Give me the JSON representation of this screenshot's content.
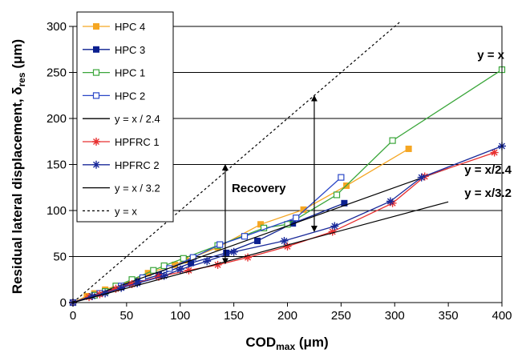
{
  "chart_data": {
    "type": "line",
    "xlabel": {
      "main": "COD",
      "sub": "max",
      "tail": " (μm)"
    },
    "ylabel": {
      "main": "Residual lateral displacement, δ",
      "sub": "res",
      "tail": " (μm)"
    },
    "xlim": [
      0,
      400
    ],
    "ylim": [
      0,
      300
    ],
    "xticks": [
      0,
      50,
      100,
      150,
      200,
      250,
      300,
      350,
      400
    ],
    "yticks": [
      0,
      50,
      100,
      150,
      200,
      250,
      300
    ],
    "grid": "horizontal",
    "legend_position": "top-left",
    "series": [
      {
        "name": "HPC 4",
        "color": "#f5a623",
        "marker": "filled-square",
        "x": [
          0,
          13,
          20,
          30,
          40,
          55,
          70,
          95,
          105,
          135,
          175,
          215,
          255,
          313
        ],
        "y": [
          0,
          7,
          10,
          14,
          18,
          24,
          32,
          41,
          46,
          60,
          85,
          101,
          127,
          167
        ]
      },
      {
        "name": "HPC 3",
        "color": "#0a1f8f",
        "marker": "filled-square",
        "x": [
          0,
          20,
          30,
          45,
          60,
          80,
          110,
          143,
          172,
          205,
          253
        ],
        "y": [
          0,
          8,
          12,
          17,
          23,
          30,
          43,
          54,
          67,
          86,
          108
        ]
      },
      {
        "name": "HPC 1",
        "color": "#3aa63a",
        "marker": "open-square",
        "x": [
          0,
          20,
          30,
          40,
          55,
          75,
          85,
          103,
          135,
          178,
          200,
          246,
          298,
          400
        ],
        "y": [
          0,
          8,
          12,
          18,
          25,
          35,
          40,
          48,
          62,
          81,
          85,
          117,
          176,
          253
        ]
      },
      {
        "name": "HPC 2",
        "color": "#2a47c7",
        "marker": "open-square",
        "x": [
          0,
          25,
          45,
          65,
          90,
          112,
          137,
          160,
          208,
          250
        ],
        "y": [
          0,
          10,
          18,
          27,
          37,
          49,
          63,
          72,
          92,
          136
        ]
      },
      {
        "name": "y = x / 2.4",
        "color": "#000000",
        "marker": "none",
        "x": [
          0,
          350
        ],
        "y": [
          0,
          145.8
        ]
      },
      {
        "name": "HPFRC 1",
        "color": "#e83030",
        "marker": "asterisk",
        "x": [
          0,
          15,
          25,
          40,
          55,
          80,
          108,
          135,
          163,
          200,
          242,
          298,
          328,
          393
        ],
        "y": [
          0,
          6,
          9,
          15,
          20,
          28,
          35,
          41,
          49,
          61,
          77,
          108,
          137,
          163
        ]
      },
      {
        "name": "HPFRC 2",
        "color": "#1a2a9a",
        "marker": "asterisk",
        "x": [
          0,
          18,
          30,
          45,
          60,
          85,
          100,
          125,
          150,
          197,
          244,
          296,
          325,
          400
        ],
        "y": [
          0,
          7,
          10,
          16,
          21,
          29,
          36,
          45,
          55,
          67,
          83,
          110,
          136,
          170
        ]
      },
      {
        "name": "y = x / 3.2",
        "color": "#000000",
        "marker": "none",
        "x": [
          0,
          350
        ],
        "y": [
          0,
          109.4
        ]
      },
      {
        "name": "y = x",
        "color": "#000000",
        "marker": "none",
        "dashed": true,
        "x": [
          0,
          305
        ],
        "y": [
          0,
          305
        ]
      }
    ],
    "annotations": [
      {
        "text": "y = x",
        "x": 377,
        "y": 265
      },
      {
        "text": "y = x/2.4",
        "x": 365,
        "y": 140
      },
      {
        "text": "y = x/3.2",
        "x": 365,
        "y": 115
      },
      {
        "text": "Recovery",
        "x": 148,
        "y": 120
      }
    ],
    "recovery_arrows": [
      {
        "x": 142,
        "y_from": 45,
        "y_to": 147
      },
      {
        "x": 225,
        "y_from": 80,
        "y_to": 222
      }
    ]
  }
}
